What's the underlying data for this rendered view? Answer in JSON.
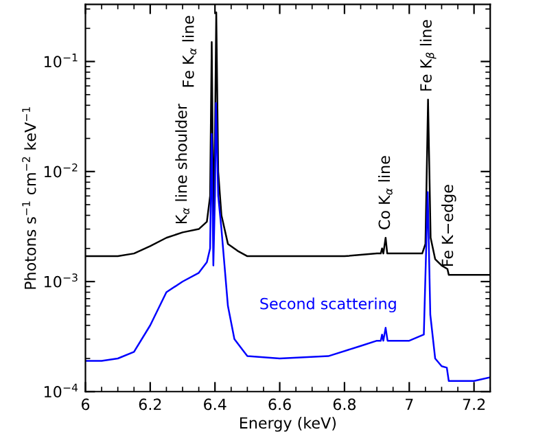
{
  "chart_data": {
    "type": "line",
    "xlabel": "Energy (keV)",
    "ylabel": "Photons s$^{−1}$ cm$^{−2}$ keV$^{−1}$",
    "log": "y",
    "xlim": [
      6,
      7.25
    ],
    "xticks": [
      6,
      6.2,
      6.4,
      6.6,
      6.8,
      7,
      7.2
    ],
    "ylim": [
      0.0001,
      0.33
    ],
    "yticks": [
      {
        "value": 0.0001,
        "label": "10$^{−4}$"
      },
      {
        "value": 0.001,
        "label": "10$^{−3}$"
      },
      {
        "value": 0.01,
        "label": "10$^{−2}$"
      },
      {
        "value": 0.1,
        "label": "10$^{−1}$"
      }
    ],
    "grid": false,
    "legend": false,
    "marker": "none",
    "line_style": "solid",
    "series": [
      {
        "color": "#000000",
        "x": [
          6.0,
          6.1,
          6.15,
          6.2,
          6.25,
          6.3,
          6.35,
          6.375,
          6.385,
          6.39,
          6.395,
          6.4,
          6.404,
          6.41,
          6.42,
          6.44,
          6.47,
          6.5,
          6.6,
          6.8,
          6.9,
          6.912,
          6.916,
          6.92,
          6.927,
          6.932,
          7.0,
          7.04,
          7.05,
          7.058,
          7.066,
          7.08,
          7.1,
          7.118,
          7.122,
          7.15,
          7.25
        ],
        "values": [
          0.0017,
          0.0017,
          0.0018,
          0.0021,
          0.0025,
          0.0028,
          0.003,
          0.0035,
          0.006,
          0.15,
          0.004,
          0.02,
          0.28,
          0.01,
          0.004,
          0.0022,
          0.0019,
          0.0017,
          0.0017,
          0.0017,
          0.0018,
          0.0018,
          0.002,
          0.0018,
          0.0025,
          0.0018,
          0.0018,
          0.0018,
          0.0022,
          0.045,
          0.0025,
          0.0016,
          0.0014,
          0.0013,
          0.00115,
          0.00115,
          0.00115
        ]
      },
      {
        "name": "Second scattering",
        "color": "#0000ff",
        "x": [
          6.0,
          6.05,
          6.1,
          6.15,
          6.2,
          6.25,
          6.3,
          6.35,
          6.375,
          6.385,
          6.39,
          6.395,
          6.4,
          6.403,
          6.41,
          6.42,
          6.44,
          6.46,
          6.5,
          6.6,
          6.75,
          6.85,
          6.9,
          6.912,
          6.916,
          6.92,
          6.927,
          6.933,
          7.0,
          7.045,
          7.057,
          7.065,
          7.08,
          7.1,
          7.116,
          7.122,
          7.2,
          7.25
        ],
        "values": [
          0.00019,
          0.00019,
          0.0002,
          0.00023,
          0.0004,
          0.0008,
          0.001,
          0.0012,
          0.0015,
          0.002,
          0.022,
          0.0014,
          0.006,
          0.042,
          0.006,
          0.003,
          0.0006,
          0.0003,
          0.00021,
          0.0002,
          0.00021,
          0.00026,
          0.00029,
          0.00029,
          0.00033,
          0.00029,
          0.00038,
          0.00029,
          0.00029,
          0.00033,
          0.0065,
          0.0005,
          0.0002,
          0.00017,
          0.000165,
          0.000125,
          0.000125,
          0.000135
        ]
      }
    ],
    "annotations": [
      {
        "text": "K$_{α}$ line shoulder",
        "x": 6.3,
        "y": 0.0028
      },
      {
        "text": "Fe K$_{α}$ line",
        "x": 6.404,
        "y": 0.28
      },
      {
        "text": "Co K$_{α}$ line",
        "x": 6.927,
        "y": 0.0025
      },
      {
        "text": "Fe K$_{β}$ line",
        "x": 7.058,
        "y": 0.045
      },
      {
        "text": "Fe K−edge",
        "x": 7.122,
        "y": 0.00115
      }
    ]
  }
}
